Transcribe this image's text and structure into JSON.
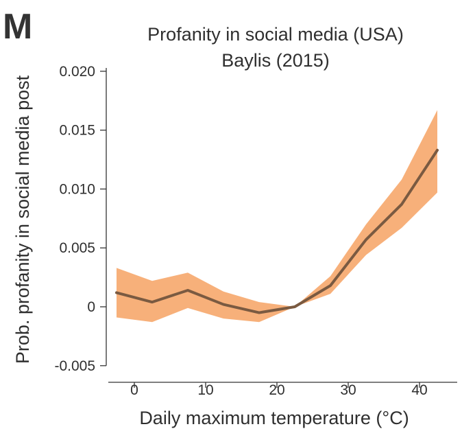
{
  "panel_label": "M",
  "chart_data": {
    "type": "line",
    "title": "Profanity in social media (USA)",
    "subtitle": "Baylis (2015)",
    "xlabel": "Daily maximum temperature (°C)",
    "ylabel": "Prob. profanity in social media post",
    "xlim": [
      -4,
      45
    ],
    "ylim": [
      -0.005,
      0.0205
    ],
    "x_ticks": [
      0,
      10,
      20,
      30,
      40
    ],
    "x_tick_labels": [
      "0",
      "10",
      "20",
      "30",
      "40"
    ],
    "y_ticks": [
      -0.005,
      0,
      0.005,
      0.01,
      0.015,
      0.02
    ],
    "y_tick_labels": [
      "-0.005",
      "0",
      "0.005",
      "0.010",
      "0.015",
      "0.020"
    ],
    "grid": false,
    "series": [
      {
        "x": [
          -2.5,
          2.5,
          7.5,
          12.5,
          17.5,
          22.5,
          27.5,
          32.5,
          37.5,
          42.5
        ],
        "y": [
          0.0012,
          0.0004,
          0.0014,
          0.0002,
          -0.0005,
          0.0,
          0.0018,
          0.0057,
          0.0087,
          0.0133
        ],
        "lower": [
          -0.0009,
          -0.0013,
          -0.0001,
          -0.001,
          -0.0013,
          0.0,
          0.0011,
          0.0044,
          0.0067,
          0.0097
        ],
        "upper": [
          0.0033,
          0.0022,
          0.0029,
          0.0013,
          0.0004,
          0.0,
          0.0026,
          0.007,
          0.0108,
          0.0167
        ],
        "line_color": "#7a5a41",
        "band_color": "#f7b07a"
      }
    ]
  }
}
